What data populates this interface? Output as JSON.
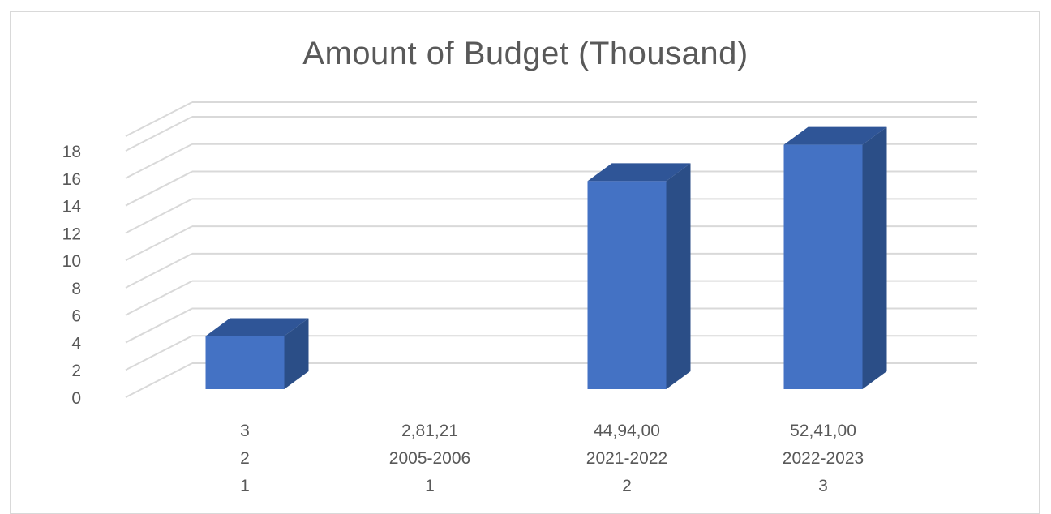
{
  "chart_data": {
    "type": "bar",
    "title": "Amount of Budget (Thousand)",
    "xlabel": "",
    "ylabel": "",
    "ylim": [
      0,
      18
    ],
    "yticks": [
      0,
      2,
      4,
      6,
      8,
      10,
      12,
      14,
      16,
      18
    ],
    "grid": true,
    "legend": "none",
    "bar_style": "3d-column",
    "colors": {
      "bar_front": "#4472c4",
      "bar_top": "#2f5597",
      "bar_side": "#2b4e87",
      "grid": "#d9d9d9",
      "text": "#595959"
    },
    "categories": [
      {
        "lines": [
          "3",
          "2",
          "1"
        ]
      },
      {
        "lines": [
          "2,81,21",
          "2005-2006",
          "1"
        ]
      },
      {
        "lines": [
          "44,94,00",
          "2021-2022",
          "2"
        ]
      },
      {
        "lines": [
          "52,41,00",
          "2022-2023",
          "3"
        ]
      }
    ],
    "values": [
      3.8,
      0,
      14.9,
      17.5
    ]
  }
}
